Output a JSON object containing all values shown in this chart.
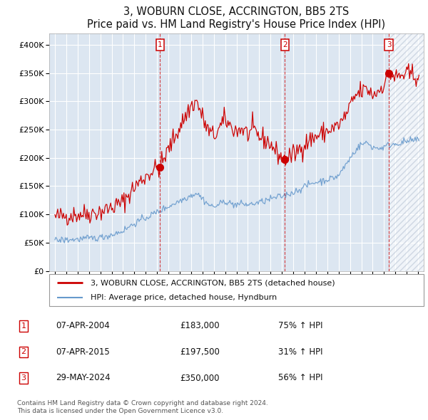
{
  "title": "3, WOBURN CLOSE, ACCRINGTON, BB5 2TS",
  "subtitle": "Price paid vs. HM Land Registry's House Price Index (HPI)",
  "ylim": [
    0,
    420000
  ],
  "yticks": [
    0,
    50000,
    100000,
    150000,
    200000,
    250000,
    300000,
    350000,
    400000
  ],
  "ytick_labels": [
    "£0",
    "£50K",
    "£100K",
    "£150K",
    "£200K",
    "£250K",
    "£300K",
    "£350K",
    "£400K"
  ],
  "xlim_start": 1994.5,
  "xlim_end": 2027.5,
  "xticks": [
    1995,
    1996,
    1997,
    1998,
    1999,
    2000,
    2001,
    2002,
    2003,
    2004,
    2005,
    2006,
    2007,
    2008,
    2009,
    2010,
    2011,
    2012,
    2013,
    2014,
    2015,
    2016,
    2017,
    2018,
    2019,
    2020,
    2021,
    2022,
    2023,
    2024,
    2025,
    2026,
    2027
  ],
  "sale_events": [
    {
      "num": 1,
      "year": 2004.27,
      "price": 183000,
      "date": "07-APR-2004",
      "hpi_pct": "75%",
      "direction": "↑"
    },
    {
      "num": 2,
      "year": 2015.27,
      "price": 197500,
      "date": "07-APR-2015",
      "hpi_pct": "31%",
      "direction": "↑"
    },
    {
      "num": 3,
      "year": 2024.42,
      "price": 350000,
      "date": "29-MAY-2024",
      "hpi_pct": "56%",
      "direction": "↑"
    }
  ],
  "legend_line1": "3, WOBURN CLOSE, ACCRINGTON, BB5 2TS (detached house)",
  "legend_line2": "HPI: Average price, detached house, Hyndburn",
  "footer1": "Contains HM Land Registry data © Crown copyright and database right 2024.",
  "footer2": "This data is licensed under the Open Government Licence v3.0.",
  "red_color": "#cc0000",
  "blue_color": "#6699cc",
  "bg_color": "#dce6f1",
  "hatch_color": "#b8c4d4",
  "grid_color": "#ffffff",
  "hatch_start": 2024.42
}
